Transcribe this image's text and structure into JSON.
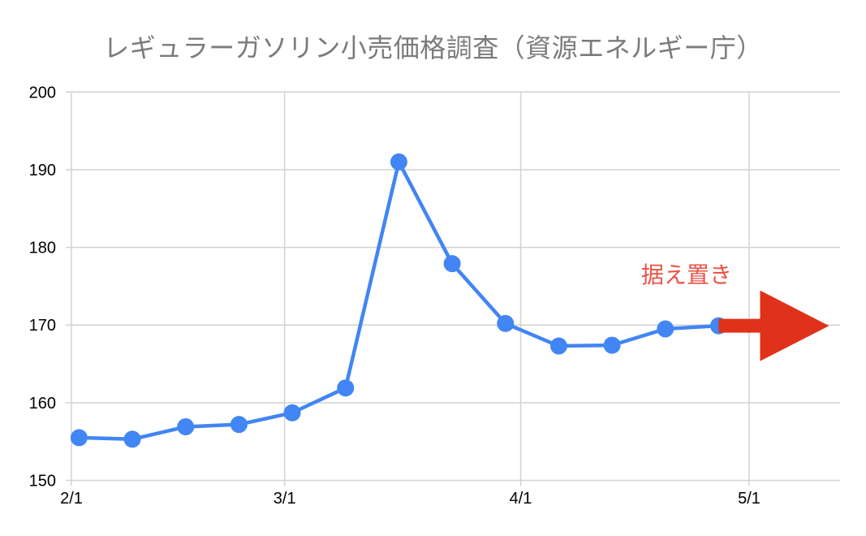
{
  "chart_data": {
    "type": "line",
    "title": "レギュラーガソリン小売価格調査（資源エネルギー庁）",
    "x_axis": {
      "tick_labels": [
        "2/1",
        "3/1",
        "4/1",
        "5/1"
      ],
      "tick_days_from_start": [
        0,
        28,
        59,
        89
      ],
      "range_days": [
        0,
        101
      ],
      "grid": true
    },
    "y_axis": {
      "tick_labels": [
        "150",
        "160",
        "170",
        "180",
        "190",
        "200"
      ],
      "ylim": [
        150,
        200
      ],
      "grid": true
    },
    "series": [
      {
        "color": "#4285f4",
        "points": [
          {
            "day": 1,
            "value": 155.5
          },
          {
            "day": 8,
            "value": 155.3
          },
          {
            "day": 15,
            "value": 156.9
          },
          {
            "day": 22,
            "value": 157.2
          },
          {
            "day": 29,
            "value": 158.7
          },
          {
            "day": 36,
            "value": 161.9
          },
          {
            "day": 43,
            "value": 191.0
          },
          {
            "day": 50,
            "value": 177.9
          },
          {
            "day": 57,
            "value": 170.2
          },
          {
            "day": 64,
            "value": 167.3
          },
          {
            "day": 71,
            "value": 167.4
          },
          {
            "day": 78,
            "value": 169.5
          },
          {
            "day": 85,
            "value": 169.9
          }
        ]
      }
    ],
    "annotation": {
      "text": "据え置き",
      "color": "#ea5347"
    },
    "arrow": {
      "direction": "right",
      "color": "#e0311a",
      "from_day": 85,
      "to_day": 99.5,
      "at_value": 169.9
    }
  },
  "style": {
    "background": "#ffffff",
    "title_color": "#7b7b7b",
    "grid_color": "#d2d2d2",
    "tick_label_color": "#000000",
    "line_color": "#4285f4",
    "arrow_color": "#e0311a",
    "annotation_color": "#ea5347"
  }
}
